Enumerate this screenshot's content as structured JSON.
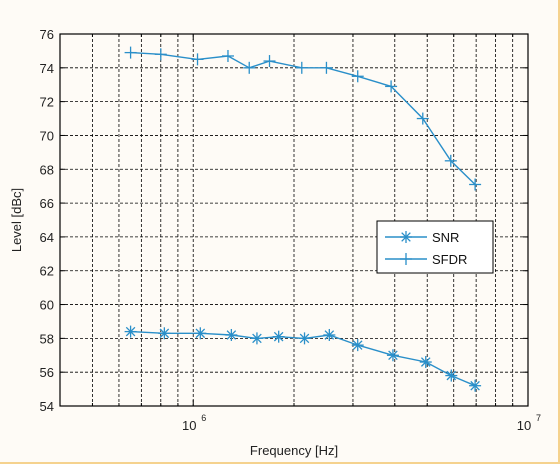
{
  "chart_data": {
    "type": "line",
    "title": "",
    "xlabel": "Frequency [Hz]",
    "ylabel": "Level [dBc]",
    "xscale": "log",
    "xlim": [
      400000.0,
      10000000.0
    ],
    "ylim": [
      54,
      76
    ],
    "yticks": [
      54,
      56,
      58,
      60,
      62,
      64,
      66,
      68,
      70,
      72,
      74,
      76
    ],
    "xtick_labels": [
      {
        "base": "10",
        "exp": "6",
        "value": 1000000
      },
      {
        "base": "10",
        "exp": "7",
        "value": 10000000
      }
    ],
    "grid": true,
    "legend_position": "right-center",
    "series": [
      {
        "name": "SNR",
        "marker": "asterisk",
        "color": "#2a8fc9",
        "points": [
          [
            650000,
            58.4
          ],
          [
            820000,
            58.3
          ],
          [
            1050000,
            58.3
          ],
          [
            1300000,
            58.2
          ],
          [
            1550000,
            58.0
          ],
          [
            1800000,
            58.1
          ],
          [
            2150000,
            58.0
          ],
          [
            2550000,
            58.2
          ],
          [
            3100000,
            57.6
          ],
          [
            3950000,
            57.0
          ],
          [
            4950000,
            56.6
          ],
          [
            5900000,
            55.8
          ],
          [
            6950000,
            55.2
          ]
        ]
      },
      {
        "name": "SFDR",
        "marker": "plus",
        "color": "#2a8fc9",
        "points": [
          [
            650000,
            74.9
          ],
          [
            800000,
            74.8
          ],
          [
            1030000,
            74.5
          ],
          [
            1270000,
            74.7
          ],
          [
            1470000,
            74.0
          ],
          [
            1690000,
            74.4
          ],
          [
            2110000,
            74.0
          ],
          [
            2500000,
            74.0
          ],
          [
            3100000,
            73.5
          ],
          [
            3900000,
            72.9
          ],
          [
            4850000,
            71.0
          ],
          [
            5880000,
            68.5
          ],
          [
            6950000,
            67.1
          ]
        ]
      }
    ]
  }
}
